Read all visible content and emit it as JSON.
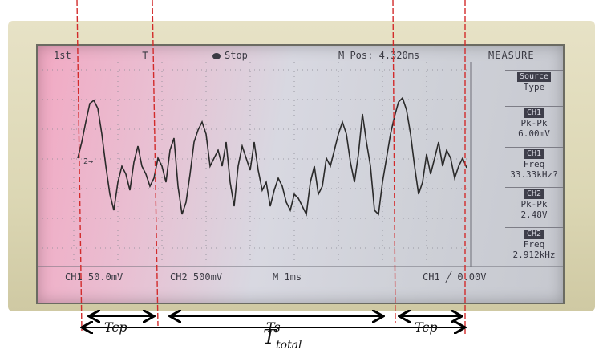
{
  "scope": {
    "status_left": "1st",
    "status_mid": "Stop",
    "status_mpos": "M Pos: 4.320ms",
    "status_right": "MEASURE",
    "trigger_marker": "2→",
    "bottom_ch1": "CH1 50.0mV",
    "bottom_ch2": "CH2 500mV",
    "bottom_time": "M 1ms",
    "bottom_trig": "CH1 ╱ 0.00V",
    "measure": [
      {
        "tag": "Source",
        "l1": "Type",
        "l2": ""
      },
      {
        "tag": "CH1",
        "l1": "Pk-Pk",
        "l2": "6.00mV"
      },
      {
        "tag": "CH1",
        "l1": "Freq",
        "l2": "33.33kHz?"
      },
      {
        "tag": "CH2",
        "l1": "Pk-Pk",
        "l2": "2.48V"
      },
      {
        "tag": "CH2",
        "l1": "Freq",
        "l2": "2.912kHz"
      }
    ]
  },
  "annotations": {
    "tcp_left": "Tcp",
    "ts": "Ts",
    "tcp_right": "Tcp",
    "ttotal_main": "T",
    "ttotal_sub": "total"
  },
  "colors": {
    "marker_line": "#d22b2b",
    "trace": "#2a2a2a",
    "arrow": "#000000"
  }
}
